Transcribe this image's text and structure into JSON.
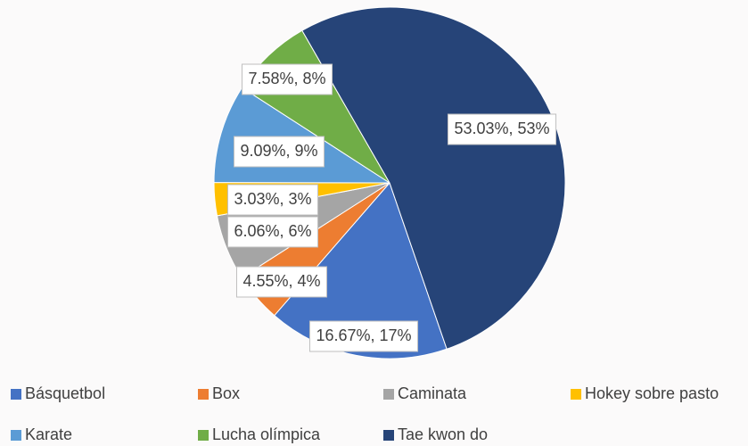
{
  "chart_data": {
    "type": "pie",
    "categories": [
      "Básquetbol",
      "Box",
      "Caminata",
      "Hokey sobre pasto",
      "Karate",
      "Lucha olímpica",
      "Tae kwon do"
    ],
    "values": [
      16.67,
      4.55,
      6.06,
      3.03,
      9.09,
      7.58,
      53.03
    ],
    "value_labels": [
      "16.67%, 17%",
      "4.55%, 4%",
      "6.06%, 6%",
      "3.03%, 3%",
      "9.09%, 9%",
      "7.58%, 8%",
      "53.03%, 53%"
    ],
    "colors": [
      "#4472c4",
      "#ed7d31",
      "#a5a5a5",
      "#ffc000",
      "#5b9bd5",
      "#70ad47",
      "#264478"
    ],
    "legend": "bottom"
  }
}
